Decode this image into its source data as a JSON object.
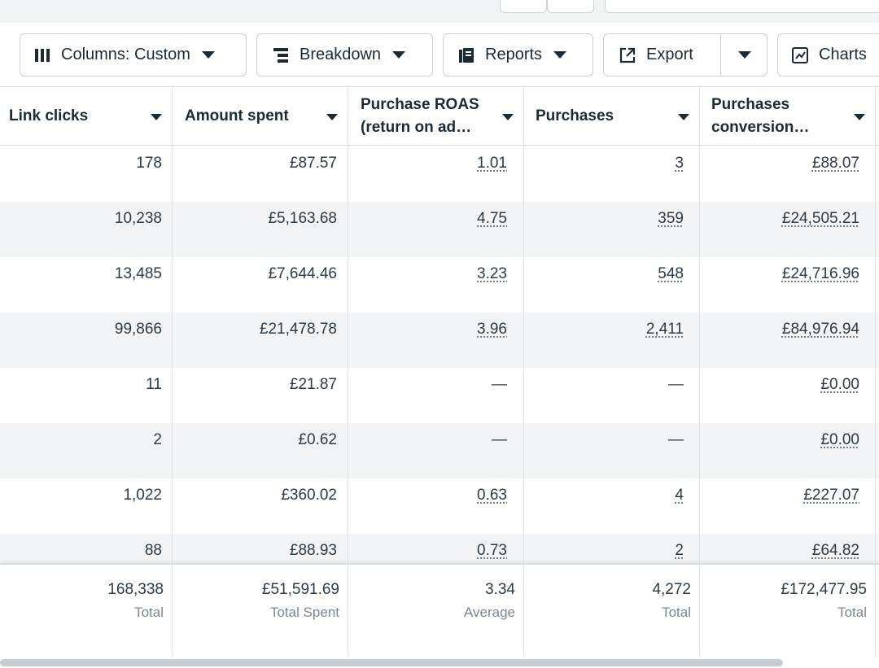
{
  "toolbar": {
    "columns_label": "Columns: Custom",
    "breakdown_label": "Breakdown",
    "reports_label": "Reports",
    "export_label": "Export",
    "charts_label": "Charts"
  },
  "table": {
    "headers": {
      "link_clicks": "Link clicks",
      "amount_spent": "Amount spent",
      "roas_line1": "Purchase ROAS",
      "roas_line2": "(return on ad…",
      "purchases": "Purchases",
      "conv_line1": "Purchases",
      "conv_line2": "conversion…"
    },
    "rows": [
      {
        "link_clicks": "178",
        "amount_spent": "£87.57",
        "roas": "1.01",
        "purchases": "3",
        "conversion": "£88.07"
      },
      {
        "link_clicks": "10,238",
        "amount_spent": "£5,163.68",
        "roas": "4.75",
        "purchases": "359",
        "conversion": "£24,505.21"
      },
      {
        "link_clicks": "13,485",
        "amount_spent": "£7,644.46",
        "roas": "3.23",
        "purchases": "548",
        "conversion": "£24,716.96"
      },
      {
        "link_clicks": "99,866",
        "amount_spent": "£21,478.78",
        "roas": "3.96",
        "purchases": "2,411",
        "conversion": "£84,976.94"
      },
      {
        "link_clicks": "11",
        "amount_spent": "£21.87",
        "roas": "—",
        "purchases": "—",
        "conversion": "£0.00"
      },
      {
        "link_clicks": "2",
        "amount_spent": "£0.62",
        "roas": "—",
        "purchases": "—",
        "conversion": "£0.00"
      },
      {
        "link_clicks": "1,022",
        "amount_spent": "£360.02",
        "roas": "0.63",
        "purchases": "4",
        "conversion": "£227.07"
      },
      {
        "link_clicks": "88",
        "amount_spent": "£88.93",
        "roas": "0.73",
        "purchases": "2",
        "conversion": "£64.82"
      }
    ],
    "totals": {
      "link_clicks": {
        "value": "168,338",
        "label": "Total"
      },
      "amount_spent": {
        "value": "£51,591.69",
        "label": "Total Spent"
      },
      "roas": {
        "value": "3.34",
        "label": "Average"
      },
      "purchases": {
        "value": "4,272",
        "label": "Total"
      },
      "conversion": {
        "value": "£172,477.95",
        "label": "Total"
      }
    }
  },
  "colors": {
    "row_alt": "#f2f4f6",
    "border": "#dde1e5",
    "text": "#1c2b33"
  }
}
